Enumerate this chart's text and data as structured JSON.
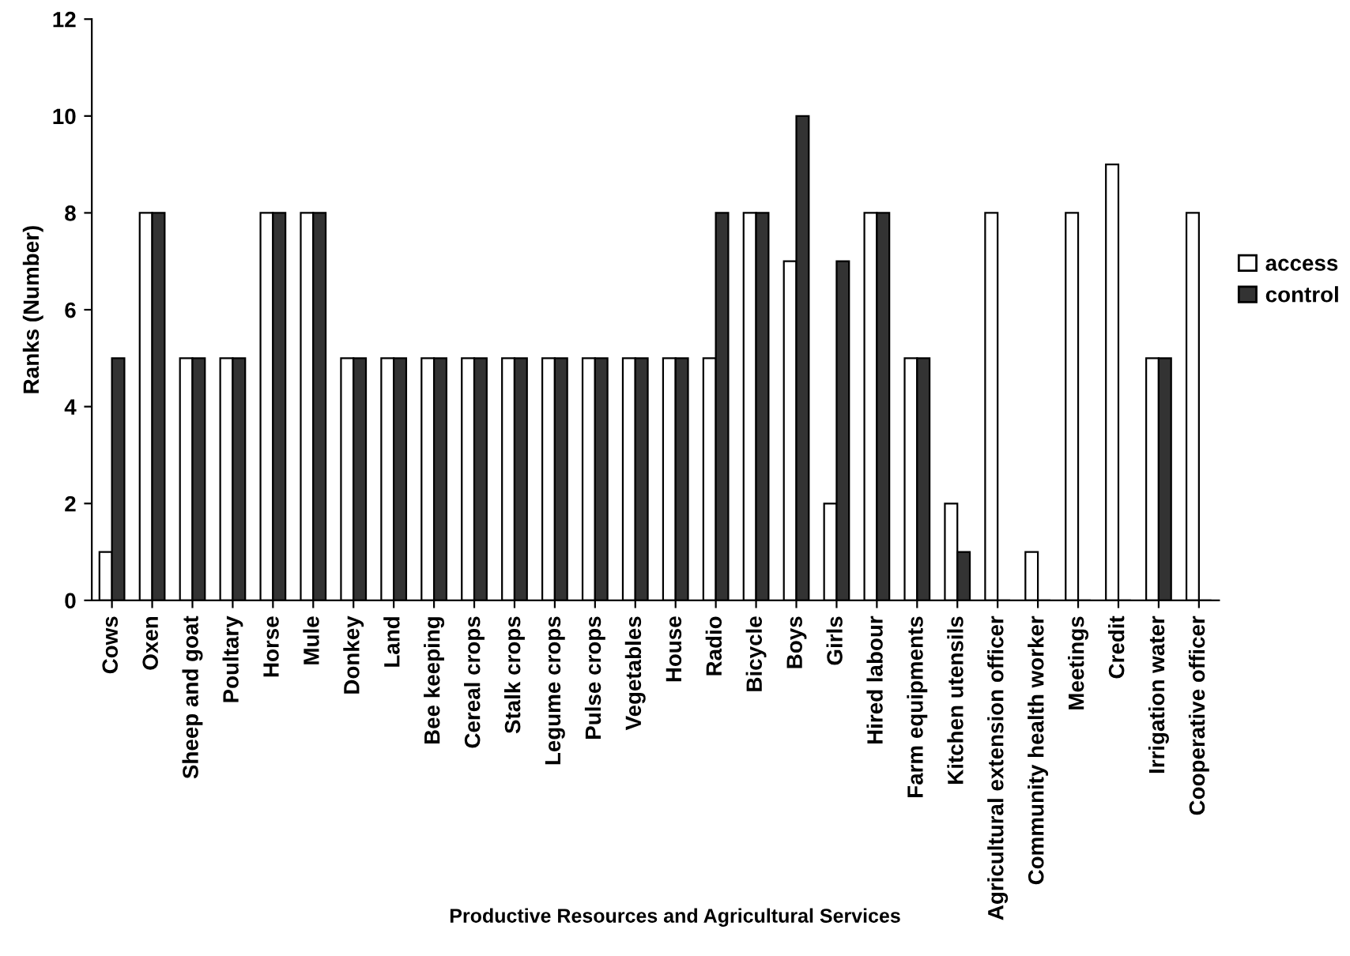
{
  "chart_data": {
    "type": "bar",
    "xlabel": "Productive Resources and Agricultural Services",
    "ylabel": "Ranks (Number)",
    "categories": [
      "Cows",
      "Oxen",
      "Sheep and goat",
      "Poultary",
      "Horse",
      "Mule",
      "Donkey",
      "Land",
      "Bee keeping",
      "Cereal crops",
      "Stalk crops",
      "Legume crops",
      "Pulse crops",
      "Vegetables",
      "House",
      "Radio",
      "Bicycle",
      "Boys",
      "Girls",
      "Hired labour",
      "Farm equipments",
      "Kitchen utensils",
      "Agricultural extension officer",
      "Community health worker",
      "Meetings",
      "Credit",
      "Irrigation water",
      "Cooperative officer"
    ],
    "series": [
      {
        "name": "access",
        "color": "#ffffff",
        "values": [
          1,
          8,
          5,
          5,
          8,
          8,
          5,
          5,
          5,
          5,
          5,
          5,
          5,
          5,
          5,
          5,
          8,
          7,
          2,
          8,
          5,
          2,
          8,
          1,
          8,
          9,
          5,
          8
        ]
      },
      {
        "name": "control",
        "color": "#333333",
        "values": [
          5,
          8,
          5,
          5,
          8,
          8,
          5,
          5,
          5,
          5,
          5,
          5,
          5,
          5,
          5,
          8,
          8,
          10,
          7,
          8,
          5,
          1,
          0,
          0,
          0,
          0,
          5,
          0
        ]
      }
    ],
    "ylim": [
      0,
      12
    ],
    "yticks": [
      0,
      2,
      4,
      6,
      8,
      10,
      12
    ],
    "grid": false,
    "legend": "right"
  }
}
